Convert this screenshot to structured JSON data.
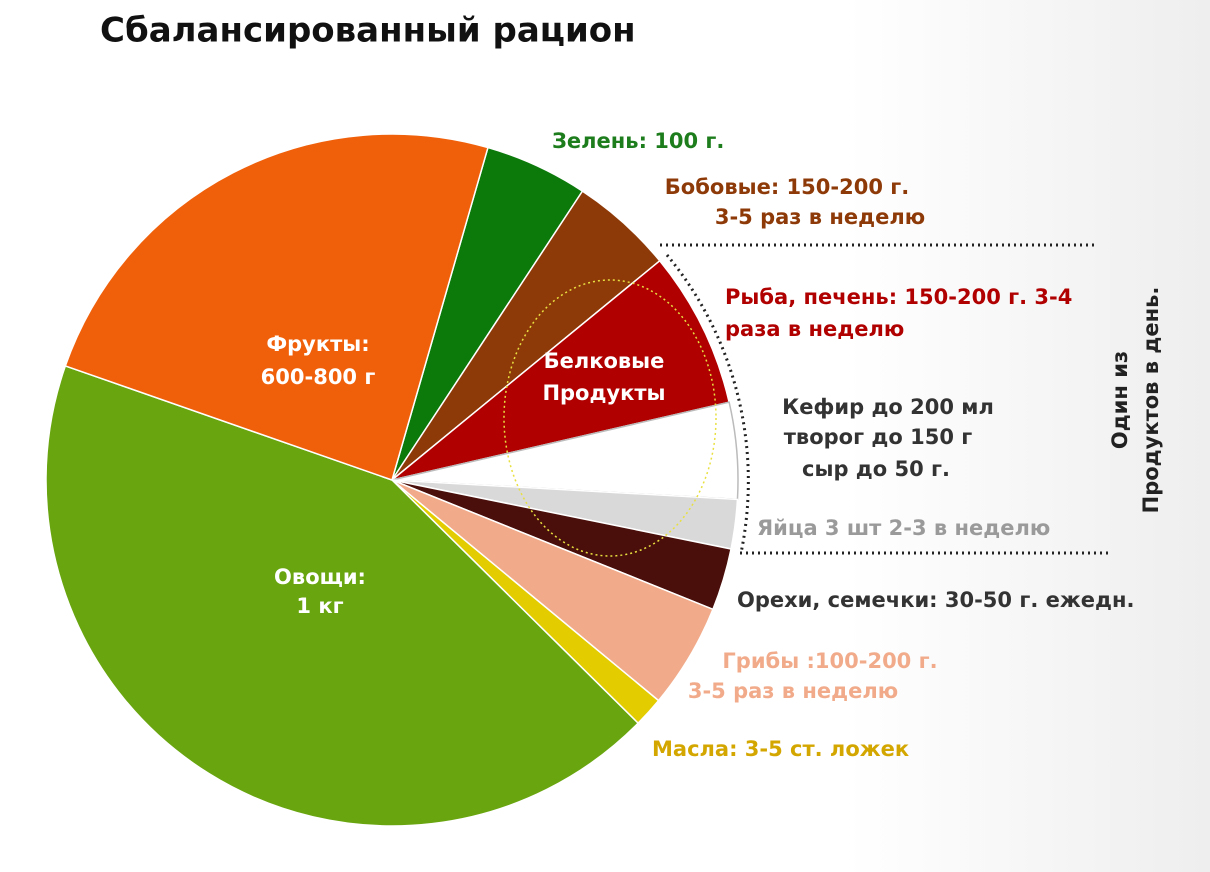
{
  "chart_data": {
    "type": "pie",
    "title": "Сбалансированный рацион",
    "categories": [
      [
        "Зелень: 100 г."
      ],
      [
        "Бобовые: 150-200 г.",
        "3-5 раз в неделю"
      ],
      [
        "Рыба, печень: 150-200 г. 3-4",
        "раза в неделю"
      ],
      [
        "Кефир до 200 мл",
        "творог до 150 г",
        "сыр до 50 г."
      ],
      [
        "Яйца 3 шт 2-3 в неделю"
      ],
      [
        "Орехи, семечки: 30-50 г. ежедн."
      ],
      [
        "Грибы :100-200 г.",
        "3-5 раз в неделю"
      ],
      [
        "Масла: 3-5 ст. ложек"
      ],
      [
        "Овощи:",
        "1 кг"
      ],
      [
        "Фрукты:",
        "600-800 г"
      ]
    ],
    "values": [
      4.8,
      4.8,
      7.3,
      4.5,
      2.3,
      2.9,
      4.9,
      1.4,
      42.9,
      24.1
    ],
    "colors": [
      "#0b7a0b",
      "#8e3a08",
      "#b00000",
      "#ffffff",
      "#d9d9d9",
      "#4a0f0a",
      "#f1ab8a",
      "#e3cc00",
      "#68a50f",
      "#f0600b"
    ],
    "label_colors": [
      "#1d7d1d",
      "#8e3a08",
      "#b00000",
      "#333333",
      "#9a9a9a",
      "#333333",
      "#f1ab8a",
      "#d4a600",
      "#ffffff",
      "#ffffff"
    ],
    "annotations": {
      "protein": [
        "Белковые",
        "Продукты"
      ],
      "one_per_day": [
        "Один из",
        "Продуктов в день."
      ]
    }
  }
}
